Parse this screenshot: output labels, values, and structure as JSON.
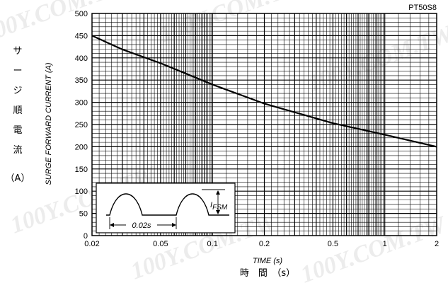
{
  "chart_data": {
    "type": "line",
    "model": "PT50S8",
    "ylabel": "SURGE FORWARD CURRENT (A)",
    "ylabel_jp": [
      "サ",
      "ー",
      "ジ",
      "順",
      "電",
      "流",
      "（A）"
    ],
    "xlabel": "TIME (s)",
    "xlabel_jp": "時　間　（s）",
    "x_scale": "log",
    "xlim": [
      0.02,
      2
    ],
    "ylim": [
      0,
      500
    ],
    "grid": true,
    "x_ticks": [
      {
        "value": 0.02,
        "label": "0.02"
      },
      {
        "value": 0.05,
        "label": "0.05"
      },
      {
        "value": 0.1,
        "label": "0.1"
      },
      {
        "value": 0.2,
        "label": "0.2"
      },
      {
        "value": 0.5,
        "label": "0.5"
      },
      {
        "value": 1,
        "label": "1"
      },
      {
        "value": 2,
        "label": "2"
      }
    ],
    "y_ticks": [
      0,
      50,
      100,
      150,
      200,
      250,
      300,
      350,
      400,
      450,
      500
    ],
    "series": [
      {
        "x": [
          0.02,
          0.03,
          0.05,
          0.1,
          0.2,
          0.5,
          1,
          2
        ],
        "y": [
          450,
          419,
          388,
          340,
          297,
          253,
          227,
          200
        ]
      }
    ],
    "inset": {
      "period_label": "0.02s",
      "amplitude_label_main": "I",
      "amplitude_label_sub": "FSM"
    }
  },
  "watermark": "100Y.COM.TW"
}
